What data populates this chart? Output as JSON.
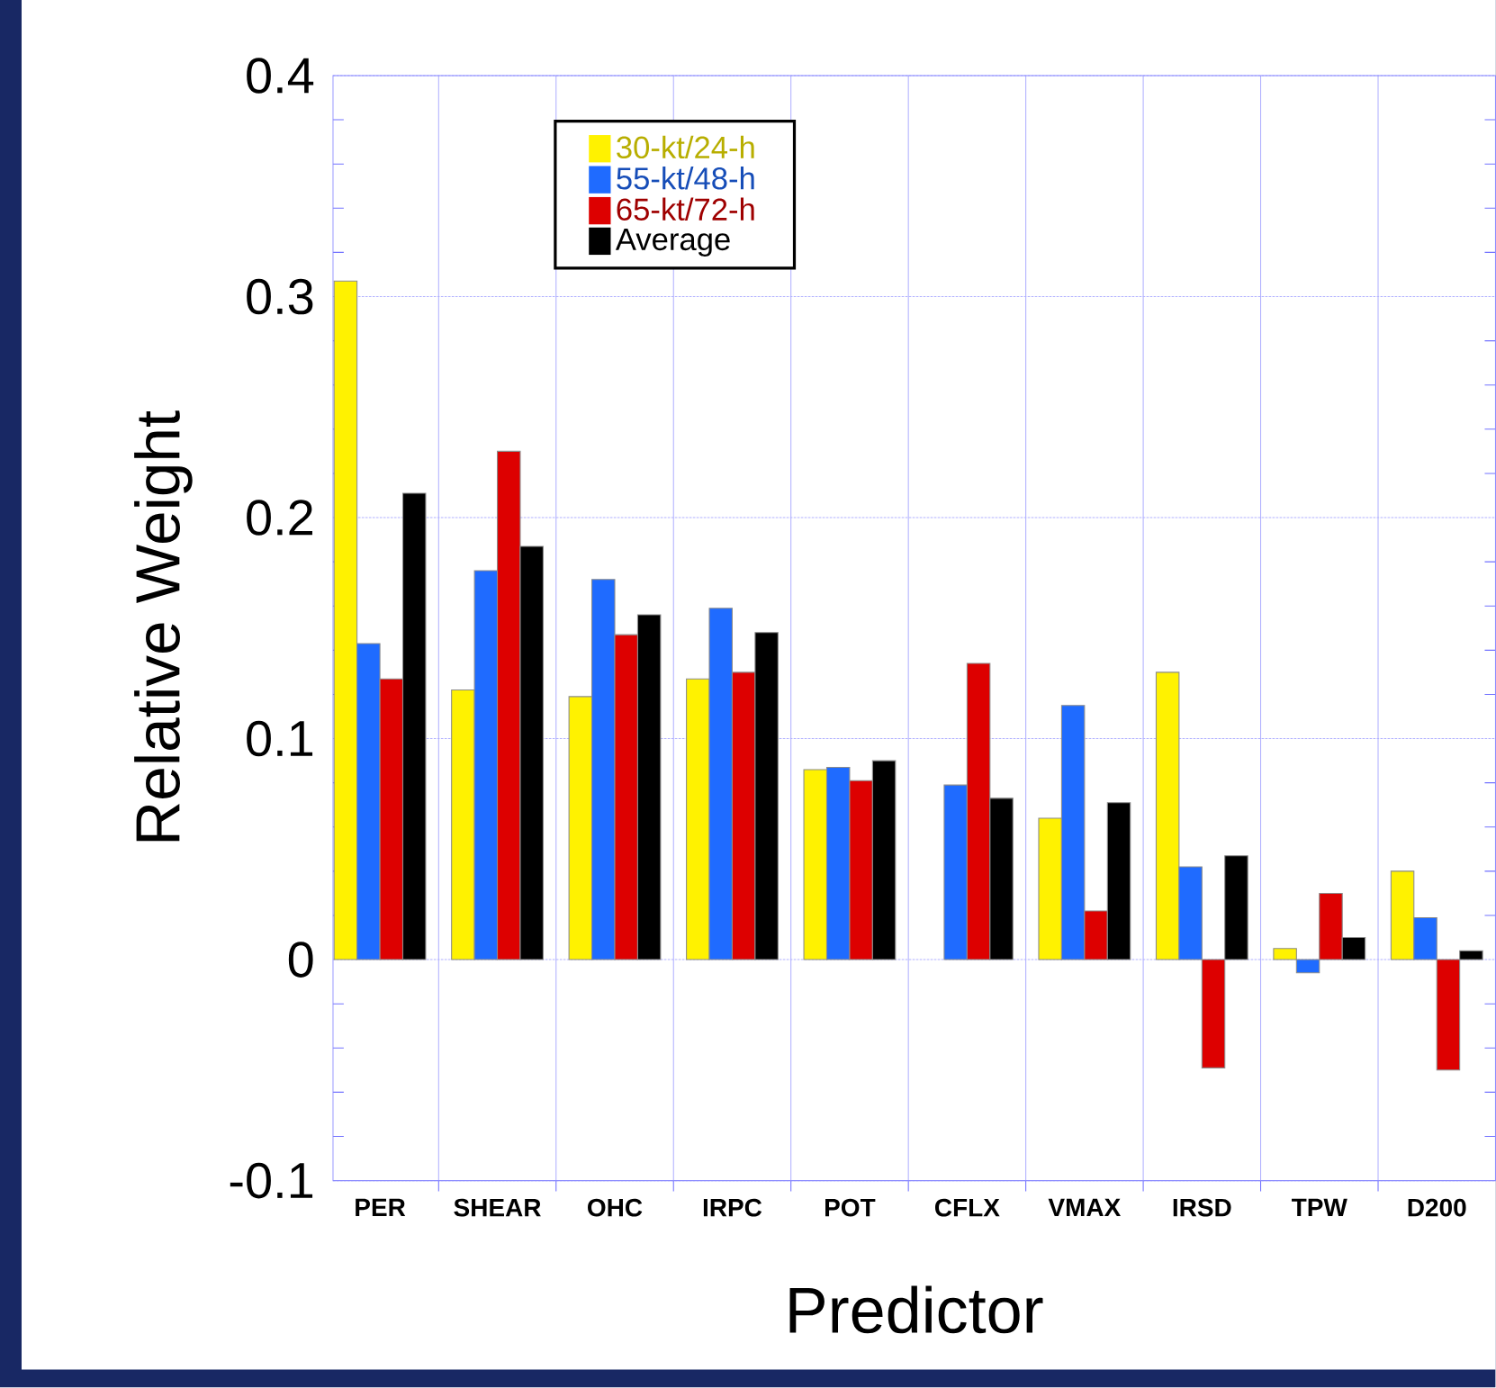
{
  "chart_data": {
    "type": "bar",
    "xlabel": "Predictor",
    "ylabel": "Relative Weight",
    "categories": [
      "PER",
      "SHEAR",
      "OHC",
      "IRPC",
      "POT",
      "CFLX",
      "VMAX",
      "IRSD",
      "TPW",
      "D200"
    ],
    "series": [
      {
        "name": "30-kt/24-h",
        "color": "#fff200",
        "values": [
          0.307,
          0.122,
          0.119,
          0.127,
          0.086,
          null,
          0.064,
          0.13,
          0.005,
          0.04
        ]
      },
      {
        "name": "55-kt/48-h",
        "color": "#1f6bff",
        "values": [
          0.143,
          0.176,
          0.172,
          0.159,
          0.087,
          0.079,
          0.115,
          0.042,
          -0.006,
          0.019
        ]
      },
      {
        "name": "65-kt/72-h",
        "color": "#dd0000",
        "values": [
          0.127,
          0.23,
          0.147,
          0.13,
          0.081,
          0.134,
          0.022,
          -0.049,
          0.03,
          -0.05
        ]
      },
      {
        "name": "Average",
        "color": "#000000",
        "values": [
          0.211,
          0.187,
          0.156,
          0.148,
          0.09,
          0.073,
          0.071,
          0.047,
          0.01,
          0.004
        ]
      }
    ],
    "ylim": [
      -0.1,
      0.4
    ],
    "yticks": [
      -0.1,
      0,
      0.1,
      0.2,
      0.3,
      0.4
    ],
    "grid": true,
    "legend": "top left"
  }
}
